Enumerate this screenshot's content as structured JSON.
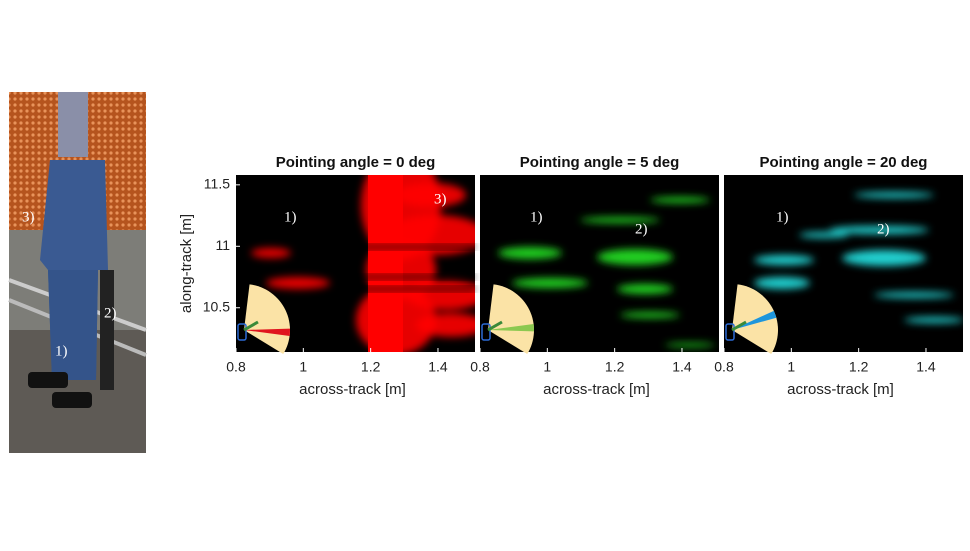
{
  "photo": {
    "labels": [
      "3)",
      "2)",
      "1)"
    ]
  },
  "chart_data": [
    {
      "type": "heatmap",
      "title": "Pointing angle = 0 deg",
      "x_label": "across-track [m]",
      "y_label": "along-track [m]",
      "xlim": [
        0.8,
        1.51
      ],
      "ylim": [
        10.14,
        11.58
      ],
      "xticks": [
        0.8,
        1,
        1.2,
        1.4
      ],
      "yticks": [
        10.5,
        11,
        11.5
      ],
      "annotations": [
        "1)",
        "3)"
      ],
      "color": "#ff0000",
      "needle_color": "#e0141e"
    },
    {
      "type": "heatmap",
      "title": "Pointing angle = 5 deg",
      "x_label": "across-track [m]",
      "xlim": [
        0.8,
        1.51
      ],
      "ylim": [
        10.14,
        11.58
      ],
      "xticks": [
        0.8,
        1,
        1.2,
        1.4
      ],
      "annotations": [
        "1)",
        "2)"
      ],
      "color": "#22e622",
      "needle_color": "#8cc850"
    },
    {
      "type": "heatmap",
      "title": "Pointing angle = 20 deg",
      "x_label": "across-track [m]",
      "xlim": [
        0.8,
        1.51
      ],
      "ylim": [
        10.14,
        11.58
      ],
      "xticks": [
        0.8,
        1,
        1.2,
        1.4
      ],
      "annotations": [
        "1)",
        "2)"
      ],
      "color": "#22e6e6",
      "needle_color": "#1e96dc"
    }
  ]
}
